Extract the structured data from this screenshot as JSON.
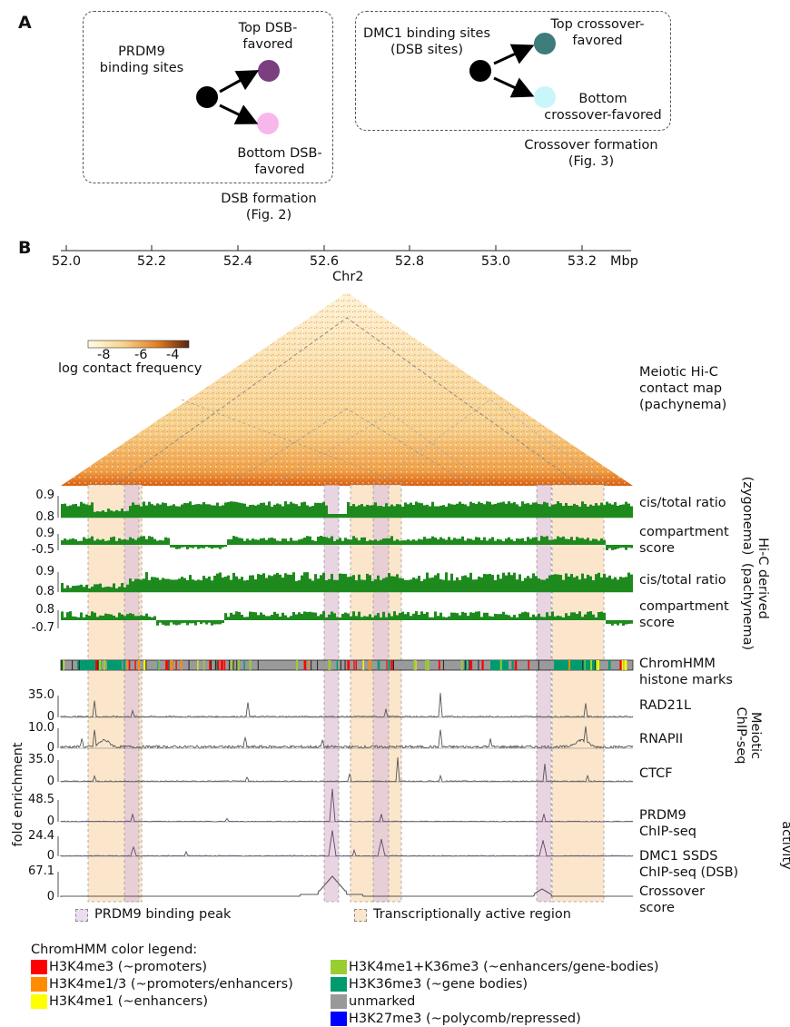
{
  "panel_a": {
    "letter": "A",
    "dsb": {
      "source_label": "PRDM9\nbinding sites",
      "top_label": "Top DSB-\nfavored",
      "bottom_label": "Bottom DSB-\nfavored",
      "caption": "DSB formation\n(Fig. 2)",
      "top_color": "#7b3f7f",
      "bottom_color": "#f8b7ec"
    },
    "crossover": {
      "source_label": "DMC1 binding sites\n(DSB sites)",
      "top_label": "Top crossover-\nfavored",
      "bottom_label": "Bottom\ncrossover-favored",
      "caption": "Crossover formation\n(Fig. 3)",
      "top_color": "#3e7b7b",
      "bottom_color": "#c8f6fb"
    }
  },
  "panel_b": {
    "letter": "B",
    "axis": {
      "ticks": [
        "52.0",
        "52.2",
        "52.4",
        "52.6",
        "52.8",
        "53.0",
        "53.2"
      ],
      "unit": "Mbp",
      "chrom": "Chr2"
    },
    "colorbar": {
      "ticks": [
        "-8",
        "-6",
        "-4"
      ],
      "label": "log contact frequency"
    },
    "hic_label": "Meiotic Hi-C\ncontact map\n(pachynema)",
    "tracks": {
      "cis_zyg": {
        "label": "cis/total ratio",
        "ymax": "0.9",
        "ymin": "0.8"
      },
      "comp_zyg": {
        "label": "compartment\nscore",
        "ymax": "0.9",
        "ymin": "-0.5"
      },
      "cis_pach": {
        "label": "cis/total ratio",
        "ymax": "0.9",
        "ymin": "0.8"
      },
      "comp_pach": {
        "label": "compartment\nscore",
        "ymax": "0.8",
        "ymin": "-0.7"
      },
      "chromhmm": {
        "label": "ChromHMM\nhistone marks"
      },
      "rad21l": {
        "label": "RAD21L",
        "ymax": "35.0",
        "ymin": "0"
      },
      "rnapii": {
        "label": "RNAPII",
        "ymax": "10.0",
        "ymin": "0"
      },
      "ctcf": {
        "label": "CTCF",
        "ymax": "35.0",
        "ymin": "0"
      },
      "prdm9": {
        "label": "PRDM9\nChIP-seq",
        "ymax": "48.5",
        "ymin": "0"
      },
      "dmc1": {
        "label": "DMC1 SSDS\nChIP-seq (DSB)",
        "ymax": "24.4",
        "ymin": "0"
      },
      "crossover": {
        "label": "Crossover\nscore",
        "ymax": "67.1",
        "ymin": "0"
      }
    },
    "group_labels": {
      "hic_derived": "Hi-C derived",
      "zygonema": "(zygonema)",
      "pachynema": "(pachynema)",
      "meiotic_chip": "Meiotic\nChIP-seq",
      "recombination": "Recombination\nactivity",
      "fold_enrichment": "fold enrichment"
    },
    "legend": {
      "prdm9_peak": "PRDM9 binding peak",
      "active_region": "Transcriptionally active region",
      "prdm9_color": "#e9ddef",
      "active_color": "#fbe6cc"
    },
    "chromhmm_legend": {
      "title": "ChromHMM color legend:",
      "items": [
        {
          "label": "H3K4me3 (~promoters)",
          "color": "#ff0000"
        },
        {
          "label": "H3K4me1/3 (~promoters/enhancers)",
          "color": "#ff8c00"
        },
        {
          "label": "H3K4me1 (~enhancers)",
          "color": "#ffff00"
        },
        {
          "label": "H3K4me1+K36me3 (~enhancers/gene-bodies)",
          "color": "#9acd32"
        },
        {
          "label": "H3K36me3 (~gene bodies)",
          "color": "#009a6e"
        },
        {
          "label": "unmarked",
          "color": "#999999"
        },
        {
          "label": "H3K27me3 (~polycomb/repressed)",
          "color": "#0000ff"
        }
      ]
    }
  }
}
